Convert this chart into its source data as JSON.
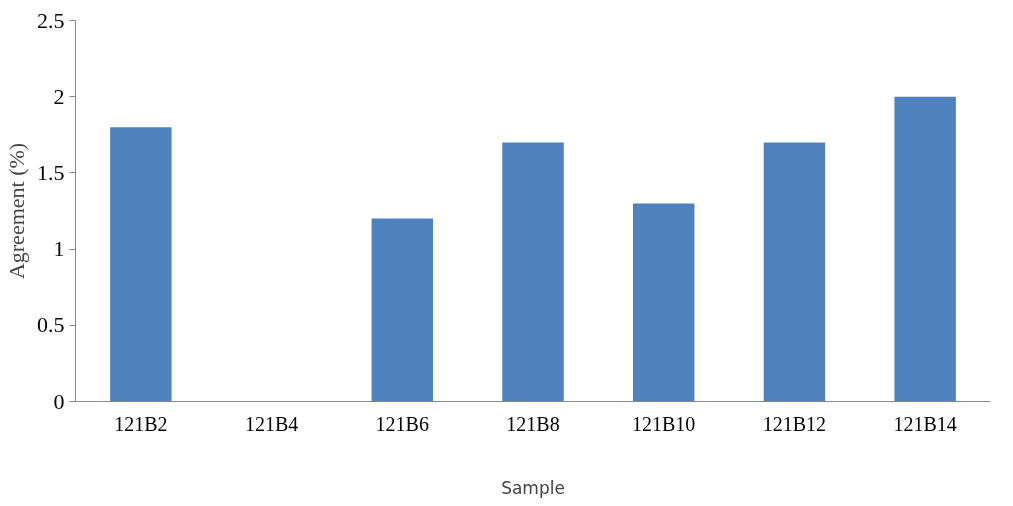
{
  "chart_data": {
    "type": "bar",
    "xlabel": "Sample",
    "ylabel": "Agreement (%)",
    "categories": [
      "121B2",
      "121B4",
      "121B6",
      "121B8",
      "121B10",
      "121B12",
      "121B14"
    ],
    "values": [
      1.8,
      0,
      1.2,
      1.7,
      1.3,
      1.7,
      2.0
    ],
    "color": "#4f81bd",
    "ylim": [
      0,
      2.5
    ],
    "yticks": [
      0,
      0.5,
      1,
      1.5,
      2,
      2.5
    ]
  }
}
